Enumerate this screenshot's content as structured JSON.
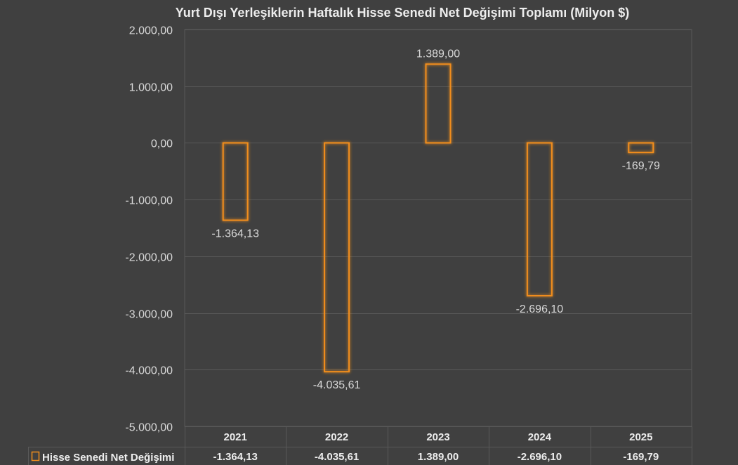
{
  "chart_data": {
    "type": "bar",
    "title": "Yurt Dışı Yerleşiklerin Haftalık Hisse Senedi Net Değişimi Toplamı (Milyon $)",
    "categories": [
      "2021",
      "2022",
      "2023",
      "2024",
      "2025"
    ],
    "series": [
      {
        "name": "Hisse Senedi Net Değişimi",
        "values": [
          -1364.13,
          -4035.61,
          1389.0,
          -2696.1,
          -169.79
        ],
        "labels": [
          "-1.364,13",
          "-4.035,61",
          "1.389,00",
          "-2.696,10",
          "-169,79"
        ],
        "color": "#f28e1c"
      }
    ],
    "ylim": [
      -5000,
      2000
    ],
    "yticks": [
      2000,
      1000,
      0,
      -1000,
      -2000,
      -3000,
      -4000,
      -5000
    ],
    "ytick_labels": [
      "2.000,00",
      "1.000,00",
      "0,00",
      "-1.000,00",
      "-2.000,00",
      "-3.000,00",
      "-4.000,00",
      "-5.000,00"
    ],
    "grid": true,
    "data_table": true,
    "xlabel": "",
    "ylabel": ""
  },
  "colors": {
    "background": "#404040",
    "grid": "#595959",
    "bar_outline": "#f28e1c",
    "text": "#d9d9d9"
  }
}
